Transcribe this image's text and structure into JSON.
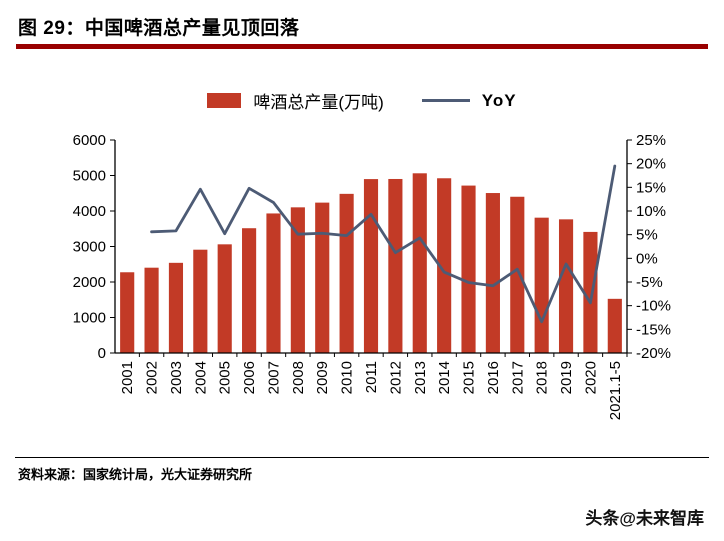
{
  "header": {
    "title": "图 29：中国啤酒总产量见顶回落"
  },
  "footer": {
    "source": "资料来源：国家统计局，光大证券研究所",
    "watermark": "头条@未来智库"
  },
  "colors": {
    "bar": "#C23A26",
    "line": "#4D5B75",
    "title_rule": "#990000",
    "axis": "#000000"
  },
  "chart_data": {
    "type": "bar+line",
    "title": "图 29：中国啤酒总产量见顶回落",
    "categories": [
      "2001",
      "2002",
      "2003",
      "2004",
      "2005",
      "2006",
      "2007",
      "2008",
      "2009",
      "2010",
      "2011",
      "2012",
      "2013",
      "2014",
      "2015",
      "2016",
      "2017",
      "2018",
      "2019",
      "2020",
      "2021.1-5"
    ],
    "series": [
      {
        "name": "啤酒总产量(万吨)",
        "type": "bar",
        "axis": "left",
        "color": "#C23A26",
        "values": [
          2274,
          2403,
          2540,
          2910,
          3061,
          3515,
          3931,
          4103,
          4236,
          4483,
          4899,
          4902,
          5062,
          4922,
          4716,
          4506,
          4401,
          3812,
          3765,
          3411,
          1526
        ]
      },
      {
        "name": "YoY",
        "type": "line",
        "axis": "right",
        "color": "#4D5B75",
        "values": [
          null,
          5.6,
          5.8,
          14.6,
          5.2,
          14.8,
          11.8,
          5.1,
          5.3,
          4.8,
          9.3,
          1.2,
          4.3,
          -2.9,
          -5.1,
          -5.8,
          -2.3,
          -13.4,
          -1.2,
          -9.4,
          19.5
        ]
      }
    ],
    "left_axis": {
      "min": 0,
      "max": 6000,
      "tick_labels": [
        "0",
        "1000",
        "2000",
        "3000",
        "4000",
        "5000",
        "6000"
      ]
    },
    "right_axis": {
      "min": -20,
      "max": 25,
      "tick_labels": [
        "-20%",
        "-15%",
        "-10%",
        "-5%",
        "0%",
        "5%",
        "10%",
        "15%",
        "20%",
        "25%"
      ]
    },
    "legend_position": "top",
    "grid": false
  }
}
